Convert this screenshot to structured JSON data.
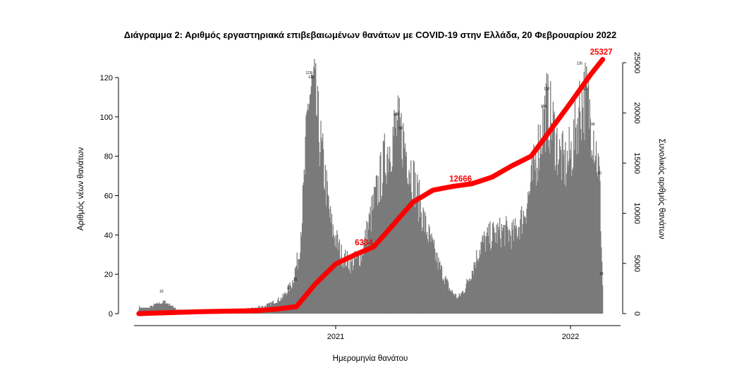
{
  "chart_data": {
    "type": "bar",
    "title": "Διάγραμμα 2: Αριθμός εργαστηριακά επιβεβαιωμένων θανάτων με COVID-19 στην Ελλάδα, 20 Φεβρουαρίου 2022",
    "xlabel": "Ημερομηνία θανάτου",
    "ylabel": "Αριθμός νέων θανάτων",
    "y2label": "Συνολικός αριθμός θανάτων",
    "ylim": [
      0,
      130
    ],
    "y2lim": [
      0,
      26500
    ],
    "y_ticks": [
      "0",
      "20",
      "40",
      "60",
      "80",
      "100",
      "120"
    ],
    "y2_ticks": [
      "0",
      "5000",
      "10000",
      "15000",
      "20000",
      "25000"
    ],
    "x_ticks": [
      "2021",
      "2022"
    ],
    "grid": false,
    "bar_color": "#7a7a7a",
    "cumulative_color": "#ff0000",
    "daily_profile": [
      [
        "2020-03-15",
        3
      ],
      [
        "2020-04-10",
        6
      ],
      [
        "2020-05-01",
        2
      ],
      [
        "2020-06-15",
        1
      ],
      [
        "2020-08-15",
        2
      ],
      [
        "2020-09-15",
        4
      ],
      [
        "2020-10-10",
        8
      ],
      [
        "2020-10-25",
        15
      ],
      [
        "2020-11-05",
        30
      ],
      [
        "2020-11-12",
        60
      ],
      [
        "2020-11-20",
        110
      ],
      [
        "2020-11-28",
        115
      ],
      [
        "2020-12-05",
        95
      ],
      [
        "2020-12-15",
        70
      ],
      [
        "2020-12-25",
        45
      ],
      [
        "2021-01-10",
        30
      ],
      [
        "2021-01-25",
        25
      ],
      [
        "2021-02-10",
        30
      ],
      [
        "2021-03-01",
        55
      ],
      [
        "2021-03-20",
        80
      ],
      [
        "2021-04-05",
        95
      ],
      [
        "2021-04-15",
        90
      ],
      [
        "2021-05-01",
        70
      ],
      [
        "2021-05-20",
        45
      ],
      [
        "2021-06-10",
        25
      ],
      [
        "2021-06-28",
        12
      ],
      [
        "2021-07-10",
        8
      ],
      [
        "2021-07-20",
        12
      ],
      [
        "2021-08-01",
        22
      ],
      [
        "2021-08-15",
        35
      ],
      [
        "2021-09-01",
        40
      ],
      [
        "2021-09-20",
        42
      ],
      [
        "2021-10-05",
        40
      ],
      [
        "2021-10-20",
        50
      ],
      [
        "2021-11-01",
        65
      ],
      [
        "2021-11-15",
        90
      ],
      [
        "2021-11-25",
        105
      ],
      [
        "2021-12-05",
        95
      ],
      [
        "2021-12-15",
        80
      ],
      [
        "2021-12-25",
        75
      ],
      [
        "2022-01-05",
        85
      ],
      [
        "2022-01-15",
        105
      ],
      [
        "2022-01-25",
        110
      ],
      [
        "2022-02-05",
        95
      ],
      [
        "2022-02-15",
        70
      ],
      [
        "2022-02-20",
        15
      ]
    ],
    "cumulative_profile": [
      [
        "2020-03-01",
        0
      ],
      [
        "2020-06-01",
        190
      ],
      [
        "2020-09-01",
        300
      ],
      [
        "2020-10-01",
        450
      ],
      [
        "2020-11-01",
        700
      ],
      [
        "2020-12-01",
        3000
      ],
      [
        "2021-01-01",
        4950
      ],
      [
        "2021-02-01",
        5900
      ],
      [
        "2021-03-01",
        6650
      ],
      [
        "2021-04-01",
        8900
      ],
      [
        "2021-05-01",
        11100
      ],
      [
        "2021-06-01",
        12300
      ],
      [
        "2021-07-01",
        12666
      ],
      [
        "2021-08-01",
        12950
      ],
      [
        "2021-09-01",
        13600
      ],
      [
        "2021-10-01",
        14700
      ],
      [
        "2021-11-01",
        15700
      ],
      [
        "2021-12-01",
        18300
      ],
      [
        "2022-01-01",
        21000
      ],
      [
        "2022-02-01",
        23800
      ],
      [
        "2022-02-20",
        25327
      ]
    ],
    "cumulative_labels": [
      {
        "date": "2021-02-15",
        "value": 6334,
        "text": "6334"
      },
      {
        "date": "2021-07-01",
        "value": 12666,
        "text": "12666"
      },
      {
        "date": "2022-02-20",
        "value": 25327,
        "text": "25327"
      }
    ],
    "bar_labels": [
      {
        "date": "2020-11-20",
        "value": 121,
        "text": "121"
      },
      {
        "date": "2020-11-24",
        "value": 119,
        "text": "119"
      },
      {
        "date": "2021-04-05",
        "value": 100,
        "text": "100"
      },
      {
        "date": "2021-04-12",
        "value": 93,
        "text": "93"
      },
      {
        "date": "2021-11-25",
        "value": 113,
        "text": "113"
      },
      {
        "date": "2021-11-20",
        "value": 104,
        "text": "104"
      },
      {
        "date": "2022-01-15",
        "value": 126,
        "text": "126"
      },
      {
        "date": "2022-01-25",
        "value": 113,
        "text": "113"
      },
      {
        "date": "2022-02-05",
        "value": 95,
        "text": "95"
      },
      {
        "date": "2022-02-15",
        "value": 70,
        "text": "70"
      },
      {
        "date": "2022-02-18",
        "value": 19,
        "text": "19"
      },
      {
        "date": "2020-04-05",
        "value": 10,
        "text": "10"
      },
      {
        "date": "2020-10-20",
        "value": 12,
        "text": "12"
      },
      {
        "date": "2020-10-30",
        "value": 16,
        "text": "16"
      }
    ]
  }
}
